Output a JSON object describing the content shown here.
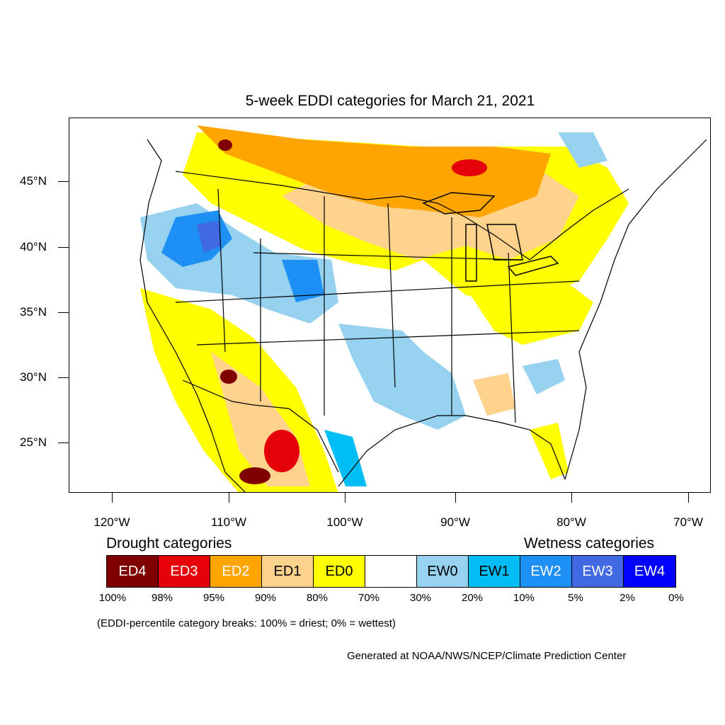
{
  "title": "5-week EDDI categories for March 21, 2021",
  "lat_labels": [
    "45°N",
    "40°N",
    "35°N",
    "30°N",
    "25°N"
  ],
  "lon_labels": [
    "120°W",
    "110°W",
    "100°W",
    "90°W",
    "80°W",
    "70°W"
  ],
  "legend": {
    "drought_heading": "Drought categories",
    "wetness_heading": "Wetness categories",
    "categories": [
      {
        "label": "ED4",
        "color": "#800000"
      },
      {
        "label": "ED3",
        "color": "#e6000a"
      },
      {
        "label": "ED2",
        "color": "#ffa500"
      },
      {
        "label": "ED1",
        "color": "#ffd38c"
      },
      {
        "label": "ED0",
        "color": "#ffff00"
      },
      {
        "label": "",
        "color": "#ffffff"
      },
      {
        "label": "EW0",
        "color": "#96d2f0"
      },
      {
        "label": "EW1",
        "color": "#00bef5"
      },
      {
        "label": "EW2",
        "color": "#1e8ff5"
      },
      {
        "label": "EW3",
        "color": "#4169e1"
      },
      {
        "label": "EW4",
        "color": "#0000ff"
      }
    ],
    "percent_breaks": [
      "100%",
      "98%",
      "95%",
      "90%",
      "80%",
      "70%",
      "30%",
      "20%",
      "10%",
      "5%",
      "2%",
      "0%"
    ]
  },
  "note": "(EDDI-percentile category breaks: 100% = driest; 0% = wettest)",
  "credit": "Generated at NOAA/NWS/NCEP/Climate Prediction Center"
}
